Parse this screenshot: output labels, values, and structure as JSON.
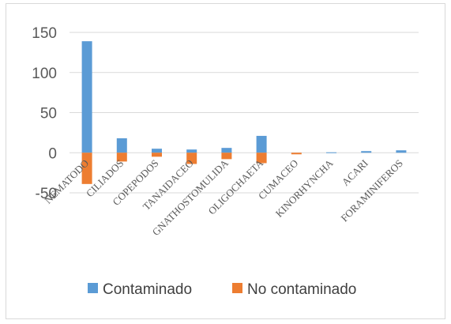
{
  "chart_data": {
    "type": "bar",
    "categories": [
      "NEMATODO",
      "CILIADOS",
      "COPEPODOS",
      "TANAIDACEO",
      "GNATHOSTOMULIDA",
      "OLIGOCHAETA",
      "CUMACEO",
      "KINORHYNCHA",
      "ACARI",
      "FORAMINIFEROS"
    ],
    "series": [
      {
        "name": "Contaminado",
        "color": "#5b9bd5",
        "values": [
          139,
          18,
          5,
          4,
          6,
          21,
          0,
          0.5,
          2,
          3
        ]
      },
      {
        "name": "No contaminado",
        "color": "#ed7d31",
        "values": [
          -39,
          -11,
          -5,
          -14,
          -8,
          -13,
          -2,
          0,
          0,
          0
        ]
      }
    ],
    "ylim": [
      -50,
      150
    ],
    "yticks": [
      "150",
      "100",
      "50",
      "0",
      "-50"
    ],
    "grid": true,
    "legend": "bottom",
    "title": "",
    "xlabel": "",
    "ylabel": ""
  }
}
